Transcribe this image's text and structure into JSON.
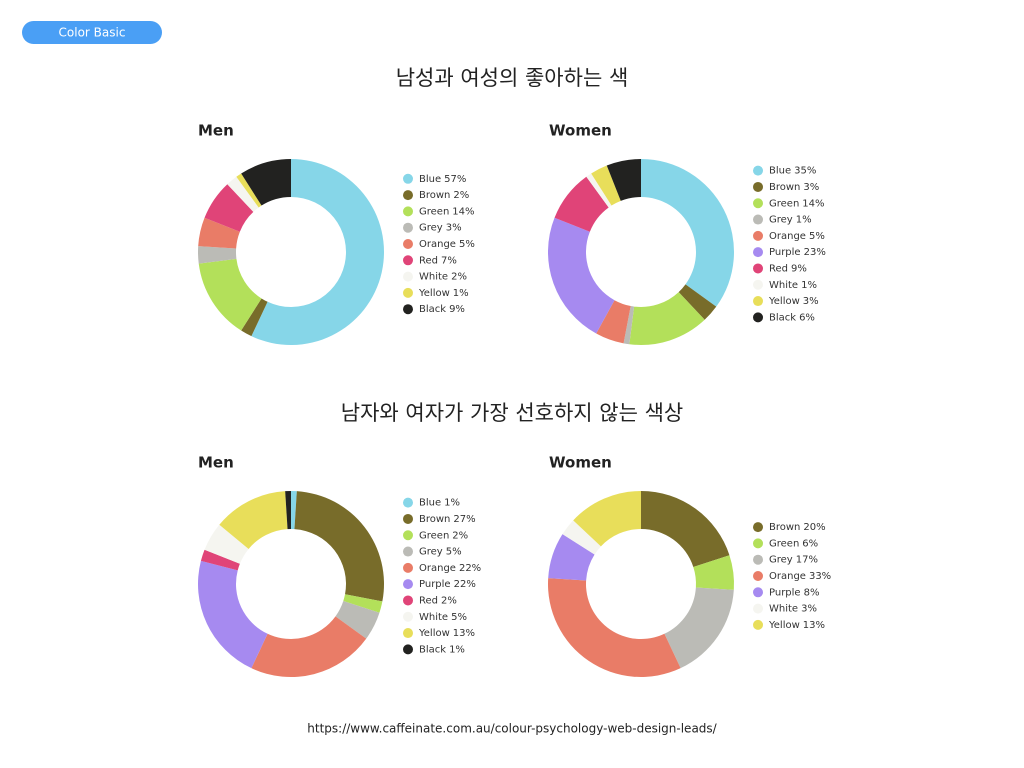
{
  "badge": "Color Basic",
  "section_titles": [
    "남성과 여성의 좋아하는 색",
    "남자와 여자가 가장 선호하지 않는 색상"
  ],
  "source": "https://www.caffeinate.com.au/colour-psychology-web-design-leads/",
  "chart_data": [
    {
      "type": "donut",
      "title": "Men",
      "categories": [
        "Blue",
        "Brown",
        "Green",
        "Grey",
        "Orange",
        "Red",
        "White",
        "Yellow",
        "Black"
      ],
      "values": [
        57,
        2,
        14,
        3,
        5,
        7,
        2,
        1,
        9
      ],
      "value_labels": [
        "57%",
        "2%",
        "14%",
        "3%",
        "5%",
        "7%",
        "2%",
        "1%",
        "9%"
      ],
      "colors": [
        "#86d6e8",
        "#786c2a",
        "#b3e05a",
        "#bbbbb6",
        "#e97c67",
        "#e04478",
        "#f5f5f0",
        "#e8de5a",
        "#222220"
      ]
    },
    {
      "type": "donut",
      "title": "Women",
      "categories": [
        "Blue",
        "Brown",
        "Green",
        "Grey",
        "Orange",
        "Purple",
        "Red",
        "White",
        "Yellow",
        "Black"
      ],
      "values": [
        35,
        3,
        14,
        1,
        5,
        23,
        9,
        1,
        3,
        6
      ],
      "value_labels": [
        "35%",
        "3%",
        "14%",
        "1%",
        "5%",
        "23%",
        "9%",
        "1%",
        "3%",
        "6%"
      ],
      "colors": [
        "#86d6e8",
        "#786c2a",
        "#b3e05a",
        "#bbbbb6",
        "#e97c67",
        "#a68af0",
        "#e04478",
        "#f5f5f0",
        "#e8de5a",
        "#222220"
      ]
    },
    {
      "type": "donut",
      "title": "Men",
      "categories": [
        "Blue",
        "Brown",
        "Green",
        "Grey",
        "Orange",
        "Purple",
        "Red",
        "White",
        "Yellow",
        "Black"
      ],
      "values": [
        1,
        27,
        2,
        5,
        22,
        22,
        2,
        5,
        13,
        1
      ],
      "value_labels": [
        "1%",
        "27%",
        "2%",
        "5%",
        "22%",
        "22%",
        "2%",
        "5%",
        "13%",
        "1%"
      ],
      "colors": [
        "#86d6e8",
        "#786c2a",
        "#b3e05a",
        "#bbbbb6",
        "#e97c67",
        "#a68af0",
        "#e04478",
        "#f5f5f0",
        "#e8de5a",
        "#222220"
      ]
    },
    {
      "type": "donut",
      "title": "Women",
      "categories": [
        "Brown",
        "Green",
        "Grey",
        "Orange",
        "Purple",
        "White",
        "Yellow"
      ],
      "values": [
        20,
        6,
        17,
        33,
        8,
        3,
        13
      ],
      "value_labels": [
        "20%",
        "6%",
        "17%",
        "33%",
        "8%",
        "3%",
        "13%"
      ],
      "colors": [
        "#786c2a",
        "#b3e05a",
        "#bbbbb6",
        "#e97c67",
        "#a68af0",
        "#f5f5f0",
        "#e8de5a"
      ]
    }
  ]
}
